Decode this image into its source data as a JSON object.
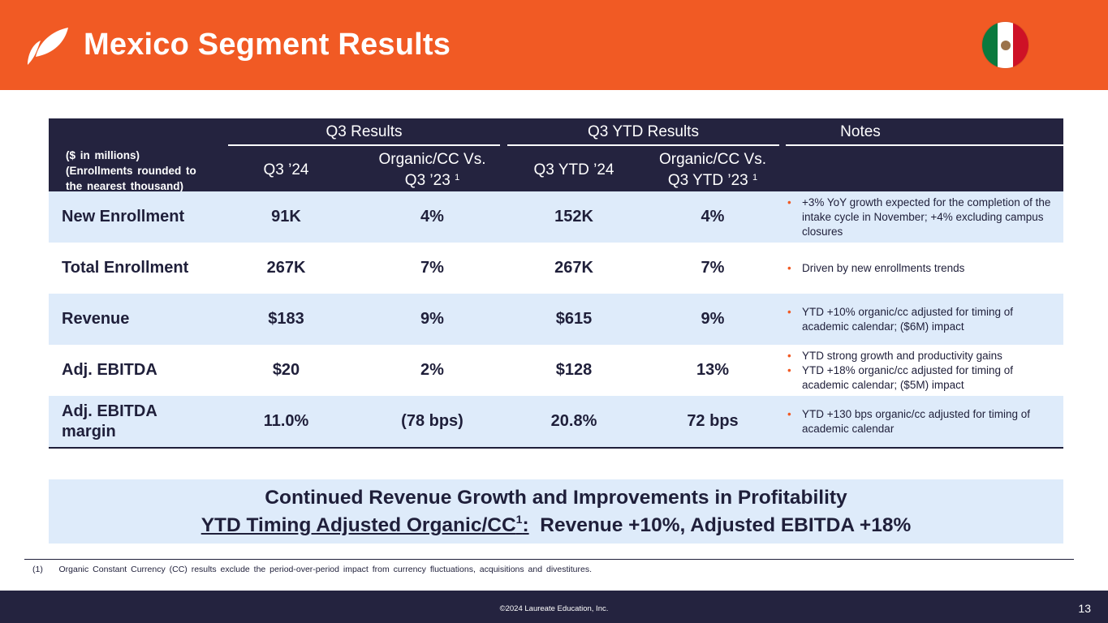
{
  "header": {
    "title": "Mexico Segment Results",
    "accent_color": "#f15a24",
    "flag_icon": "mexico-flag-icon"
  },
  "table": {
    "unit_note": [
      "($ in millions)",
      "(Enrollments rounded to",
      "the nearest thousand)"
    ],
    "groups": {
      "q3": "Q3 Results",
      "ytd": "Q3 YTD Results",
      "notes": "Notes"
    },
    "columns": {
      "q3_24": "Q3 ’24",
      "q3_organic": [
        "Organic/CC Vs.",
        "Q3 ’23"
      ],
      "ytd_24": "Q3 YTD ’24",
      "ytd_organic": [
        "Organic/CC Vs.",
        "Q3 YTD ’23"
      ],
      "footnote_ref": "1"
    },
    "rows": [
      {
        "metric": "New Enrollment",
        "q3": "91K",
        "q3_growth": "4%",
        "ytd": "152K",
        "ytd_growth": "4%",
        "notes": [
          "+3% YoY growth expected for the completion of the intake cycle in November; +4% excluding campus closures"
        ]
      },
      {
        "metric": "Total Enrollment",
        "q3": "267K",
        "q3_growth": "7%",
        "ytd": "267K",
        "ytd_growth": "7%",
        "notes": [
          "Driven by new enrollments trends"
        ]
      },
      {
        "metric": "Revenue",
        "q3": "$183",
        "q3_growth": "9%",
        "ytd": "$615",
        "ytd_growth": "9%",
        "notes": [
          "YTD +10% organic/cc adjusted for timing of academic calendar; ($6M) impact"
        ]
      },
      {
        "metric": "Adj. EBITDA",
        "q3": "$20",
        "q3_growth": "2%",
        "ytd": "$128",
        "ytd_growth": "13%",
        "notes": [
          "YTD strong growth and productivity gains",
          "YTD +18% organic/cc adjusted for timing of academic calendar; ($5M) impact"
        ]
      },
      {
        "metric": "Adj. EBITDA margin",
        "q3": "11.0%",
        "q3_growth": "(78 bps)",
        "ytd": "20.8%",
        "ytd_growth": "72 bps",
        "notes": [
          "YTD +130 bps organic/cc adjusted for timing of academic calendar"
        ]
      }
    ]
  },
  "callout": {
    "line1": "Continued Revenue Growth and Improvements in Profitability",
    "line2_underlined": "YTD Timing Adjusted Organic/CC",
    "line2_sup": "1",
    "line2_colon": ":",
    "line2_rest": "Revenue +10%, Adjusted EBITDA +18%"
  },
  "footnote": "(1)    Organic Constant Currency (CC) results exclude the period-over-period impact from currency fluctuations, acquisitions and divestitures.",
  "footer": {
    "copyright": "©2024 Laureate Education, Inc.",
    "page_number": "13"
  }
}
